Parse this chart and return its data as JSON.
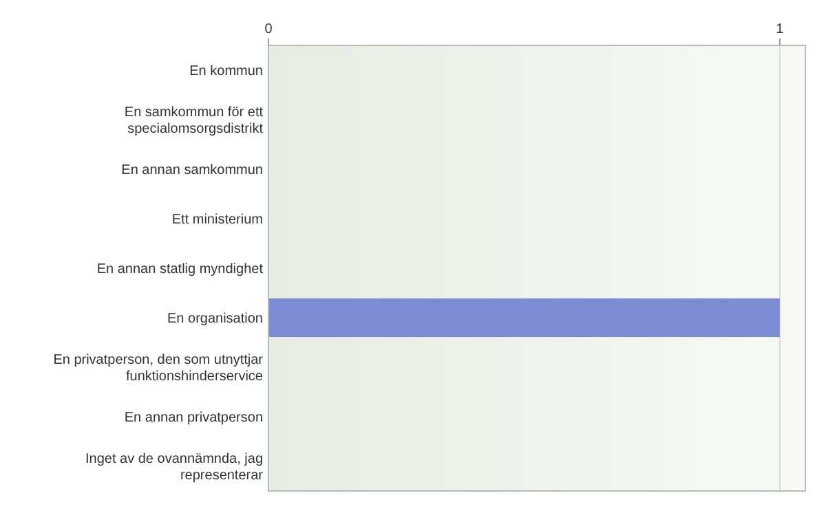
{
  "chart_data": {
    "type": "bar",
    "orientation": "horizontal",
    "categories": [
      "En kommun",
      "En samkommun för ett specialomsorgsdistrikt",
      "En annan samkommun",
      "Ett ministerium",
      "En annan statlig myndighet",
      "En organisation",
      "En privatperson, den som utnyttjar funktionshinderservice",
      "En annan privatperson",
      "Inget av de ovannämnda, jag representerar"
    ],
    "values": [
      0,
      0,
      0,
      0,
      0,
      1,
      0,
      0,
      0
    ],
    "color": "#7b8bd4",
    "xlim": [
      0,
      1.05
    ],
    "xticks": [
      0,
      1
    ],
    "grid": "x"
  }
}
